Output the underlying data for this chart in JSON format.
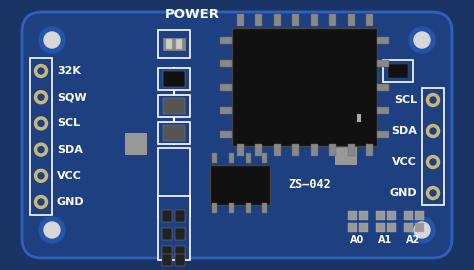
{
  "bg_color": "#1a3565",
  "board_color": "#1e4080",
  "board_edge_color": "#3060bb",
  "figsize": [
    4.74,
    2.7
  ],
  "dpi": 100,
  "left_pins": [
    "32K",
    "SQW",
    "SCL",
    "SDA",
    "VCC",
    "GND"
  ],
  "right_pins": [
    "SCL",
    "SDA",
    "VCC",
    "GND"
  ],
  "chip_color": "#111111",
  "white": "#ffffff",
  "gray": "#aaaaaa",
  "silver": "#c0c0c0",
  "orange": "#cc5500",
  "gold": "#b8a060",
  "tan": "#c8b878",
  "text_color": "#ffffff",
  "title": "POWER",
  "label": "ZS—042",
  "a_labels": [
    "A0",
    "A1",
    "A2"
  ],
  "pin_color": "#c8b878",
  "pad_color": "#999999",
  "dark_gray": "#444444",
  "mid_gray": "#666666"
}
